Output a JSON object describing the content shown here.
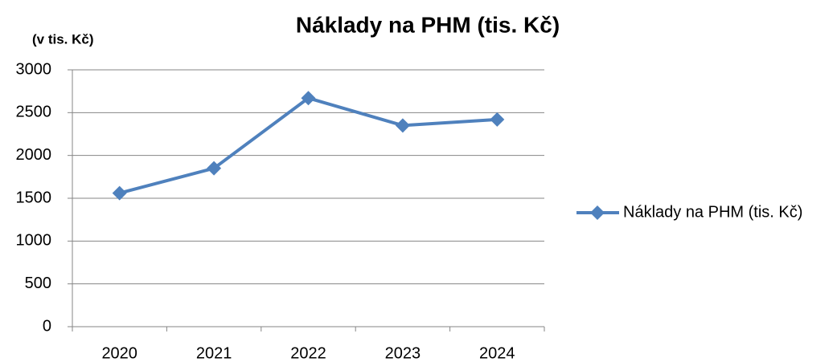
{
  "chart_data": {
    "type": "line",
    "title": "Náklady na PHM (tis. Kč)",
    "y_label": "(v tis. Kč)",
    "categories": [
      "2020",
      "2021",
      "2022",
      "2023",
      "2024"
    ],
    "series": [
      {
        "name": "Náklady na PHM (tis. Kč)",
        "color": "#4f81bd",
        "values": [
          1560,
          1850,
          2670,
          2350,
          2420
        ]
      }
    ],
    "ylim": [
      0,
      3000
    ],
    "yticks": [
      0,
      500,
      1000,
      1500,
      2000,
      2500,
      3000
    ],
    "grid": true,
    "legend": "right"
  }
}
